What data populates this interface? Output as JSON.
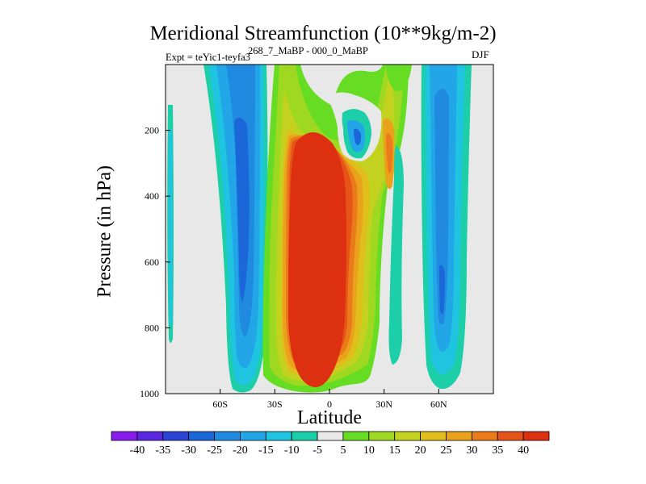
{
  "chart_data": {
    "type": "contour",
    "title": "Meridional Streamfunction (10**9kg/m-2)",
    "subtitle_left": "Expt = teYic1-teyfa3",
    "subtitle_sup": "268_7_MaBP - 000_0_MaBP",
    "subtitle_right": "DJF",
    "xlabel": "Latitude",
    "ylabel": "Pressure (in hPa)",
    "xlim": [
      -90,
      90
    ],
    "ylim": [
      1000,
      0
    ],
    "x_ticks": [
      {
        "value": -60,
        "label": "60S"
      },
      {
        "value": -30,
        "label": "30S"
      },
      {
        "value": 0,
        "label": "0"
      },
      {
        "value": 30,
        "label": "30N"
      },
      {
        "value": 60,
        "label": "60N"
      }
    ],
    "y_ticks": [
      {
        "value": 200,
        "label": "200"
      },
      {
        "value": 400,
        "label": "400"
      },
      {
        "value": 600,
        "label": "600"
      },
      {
        "value": 800,
        "label": "800"
      },
      {
        "value": 1000,
        "label": "1000"
      }
    ],
    "colorbar": {
      "labels": [
        "-40",
        "-35",
        "-30",
        "-25",
        "-20",
        "-15",
        "-10",
        "-5",
        "5",
        "10",
        "15",
        "20",
        "25",
        "30",
        "35",
        "40"
      ],
      "colors": [
        "#8a1cf0",
        "#5a28e0",
        "#2d44d8",
        "#1b66d8",
        "#1f8ae0",
        "#22a6e8",
        "#1fc4e0",
        "#1ccfa8",
        "#e8e8e8",
        "#66dd22",
        "#9fd820",
        "#c2d21e",
        "#e0be1c",
        "#eaa21c",
        "#ea7a1a",
        "#e65418",
        "#dd3010"
      ]
    },
    "features": [
      {
        "name": "cell-far-south",
        "lat": [
          -89,
          -86
        ],
        "p": [
          130,
          830
        ],
        "value": -8
      },
      {
        "name": "cell-southern-mid",
        "lat": [
          -57,
          -33
        ],
        "p": [
          0,
          980
        ],
        "value": -30
      },
      {
        "name": "cell-tropical-main",
        "lat": [
          -26,
          12
        ],
        "p": [
          180,
          960
        ],
        "value": 40
      },
      {
        "name": "cell-upper-n",
        "lat": [
          8,
          20
        ],
        "p": [
          120,
          280
        ],
        "value": -25
      },
      {
        "name": "cell-northern-mid",
        "lat": [
          52,
          74
        ],
        "p": [
          0,
          980
        ],
        "value": -30
      }
    ]
  }
}
